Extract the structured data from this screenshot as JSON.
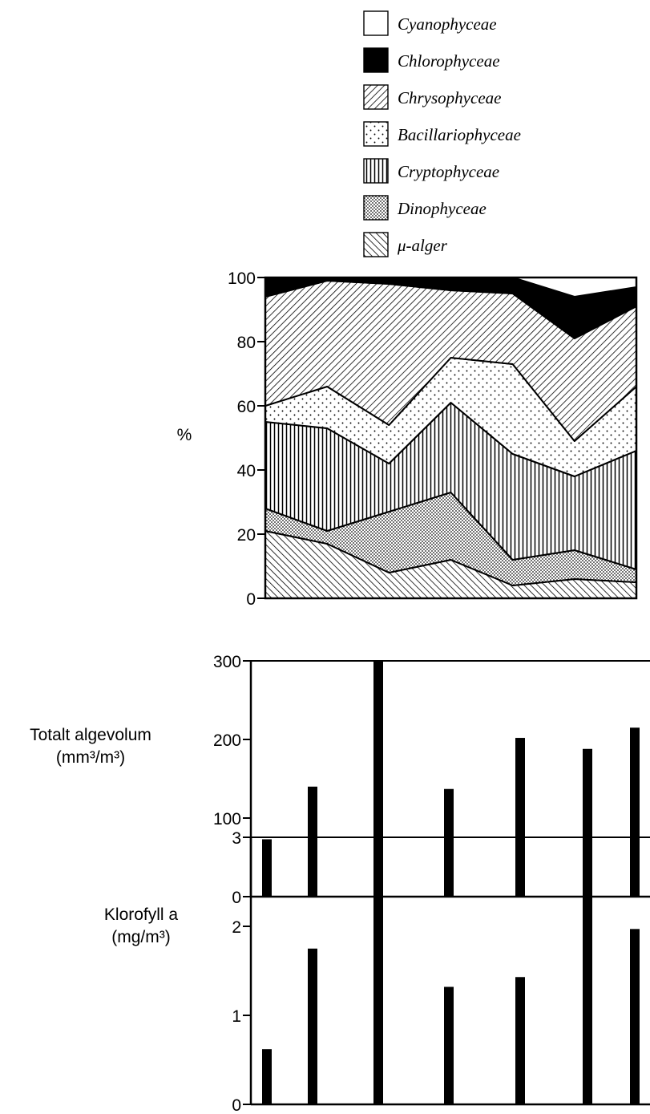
{
  "chart_data": [
    {
      "type": "area",
      "stacked": true,
      "ylabel": "%",
      "ylim": [
        0,
        100
      ],
      "yticks": [
        0,
        20,
        40,
        60,
        80,
        100
      ],
      "x": [
        1,
        2,
        3,
        4,
        5,
        6,
        7
      ],
      "legend_placement": "top",
      "series": [
        {
          "name": "Cyanophyceae",
          "pattern": "white",
          "values": [
            0,
            0,
            0,
            0,
            0,
            6,
            3
          ]
        },
        {
          "name": "Chlorophyceae",
          "pattern": "solid-black",
          "values": [
            6,
            1,
            2,
            4,
            5,
            13,
            6
          ]
        },
        {
          "name": "Chrysophyceae",
          "pattern": "diagonal-hatch",
          "values": [
            34,
            33,
            44,
            21,
            22,
            32,
            25
          ]
        },
        {
          "name": "Bacillariophyceae",
          "pattern": "sparse-dots",
          "values": [
            5,
            13,
            12,
            14,
            28,
            11,
            20
          ]
        },
        {
          "name": "Cryptophyceae",
          "pattern": "vertical-lines",
          "values": [
            27,
            32,
            15,
            28,
            33,
            23,
            37
          ]
        },
        {
          "name": "Dinophyceae",
          "pattern": "dense-dots",
          "values": [
            7,
            4,
            19,
            21,
            8,
            9,
            4
          ]
        },
        {
          "name": "μ-alger",
          "pattern": "back-diagonal-hatch",
          "values": [
            21,
            17,
            8,
            12,
            4,
            6,
            5
          ]
        }
      ]
    },
    {
      "type": "bar",
      "ylabel": [
        "Totalt algevolum",
        "(mm³/m³)"
      ],
      "ylim": [
        0,
        300
      ],
      "yticks": [
        0,
        100,
        200,
        300
      ],
      "x": [
        1,
        2,
        3,
        4,
        5,
        6,
        7
      ],
      "values": [
        73,
        140,
        300,
        137,
        202,
        188,
        215
      ]
    },
    {
      "type": "bar",
      "ylabel": [
        "Klorofyll a",
        "(mg/m³)"
      ],
      "ylim": [
        0,
        3
      ],
      "yticks": [
        0,
        1,
        2,
        3
      ],
      "x": [
        1,
        2,
        3,
        4,
        5,
        6,
        7
      ],
      "values": [
        0.62,
        1.75,
        2.37,
        1.32,
        1.43,
        2.47,
        1.97
      ]
    }
  ]
}
